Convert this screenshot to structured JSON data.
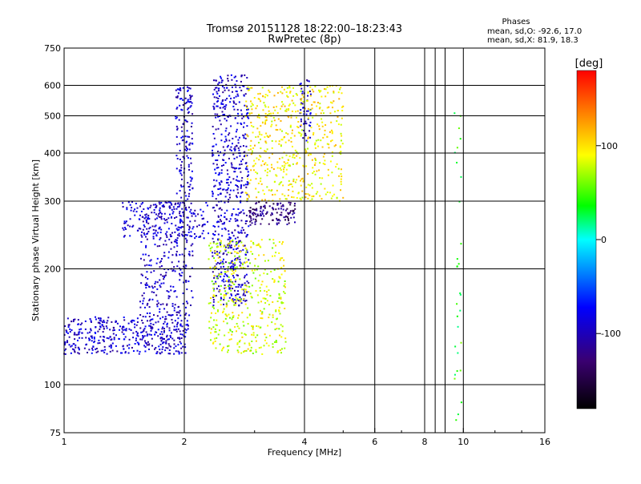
{
  "header": {
    "title_line1": "Tromsø 20151128 18:22:00–18:23:43",
    "title_line2": "RwPretec (8p)",
    "phases_title": "Phases",
    "phases_o": "mean, sd,O: -92.6, 17.0",
    "phases_x": "mean, sd,X:  81.9, 18.3"
  },
  "chart_data": {
    "type": "scatter",
    "title": "Tromsø 20151128 18:22:00–18:23:43",
    "subtitle": "RwPretec (8p)",
    "xlabel": "Frequency [MHz]",
    "ylabel": "Stationary phase Virtual Height [km]",
    "xscale": "log",
    "yscale": "log",
    "xlim": [
      1,
      16
    ],
    "ylim": [
      75,
      750
    ],
    "xticks": [
      1,
      2,
      4,
      6,
      8,
      10,
      16
    ],
    "xtick_labels": [
      "1",
      "2",
      "4",
      "6",
      "8",
      "10",
      "16"
    ],
    "yticks": [
      75,
      100,
      200,
      300,
      400,
      500,
      600,
      750
    ],
    "ytick_labels": [
      "75",
      "100",
      "200",
      "300",
      "400",
      "500",
      "600",
      "750"
    ],
    "grid": true,
    "colorbar": {
      "label": "[deg]",
      "range": [
        -180,
        180
      ],
      "ticks": [
        100,
        0,
        -100
      ],
      "tick_labels": [
        "100",
        "0",
        "-100"
      ],
      "colors": [
        "#000000",
        "#3a0070",
        "#0000ff",
        "#00ffff",
        "#00ff00",
        "#ffff00",
        "#ff0000"
      ]
    },
    "clusters": [
      {
        "name": "blue-low-trace",
        "phase": -92,
        "x_range": [
          1.0,
          2.05
        ],
        "y_range": [
          120,
          150
        ],
        "count": 420
      },
      {
        "name": "blue-mid-trace",
        "phase": -95,
        "x_range": [
          1.55,
          2.1
        ],
        "y_range": [
          150,
          300
        ],
        "count": 320
      },
      {
        "name": "blue-column-2",
        "phase": -92,
        "x_range": [
          1.9,
          2.1
        ],
        "y_range": [
          300,
          600
        ],
        "count": 140
      },
      {
        "name": "blue-column-2.5",
        "phase": -92,
        "x_range": [
          2.35,
          2.9
        ],
        "y_range": [
          160,
          640
        ],
        "count": 620
      },
      {
        "name": "blue-f-trace",
        "phase": -92,
        "x_range": [
          1.4,
          2.3
        ],
        "y_range": [
          240,
          300
        ],
        "count": 160
      },
      {
        "name": "purple-trace",
        "phase": -125,
        "x_range": [
          2.9,
          3.8
        ],
        "y_range": [
          260,
          300
        ],
        "count": 120
      },
      {
        "name": "blue-column-4",
        "phase": -95,
        "x_range": [
          3.9,
          4.15
        ],
        "y_range": [
          430,
          620
        ],
        "count": 50
      },
      {
        "name": "green-e-trace",
        "phase": 82,
        "x_range": [
          2.3,
          3.6
        ],
        "y_range": [
          120,
          240
        ],
        "count": 420
      },
      {
        "name": "yellow-f-trace",
        "phase": 95,
        "x_range": [
          2.85,
          5.0
        ],
        "y_range": [
          300,
          600
        ],
        "count": 520
      },
      {
        "name": "scatter-10mhz",
        "phase": 40,
        "x_range": [
          9.5,
          9.9
        ],
        "y_range": [
          80,
          530
        ],
        "count": 30
      }
    ]
  }
}
